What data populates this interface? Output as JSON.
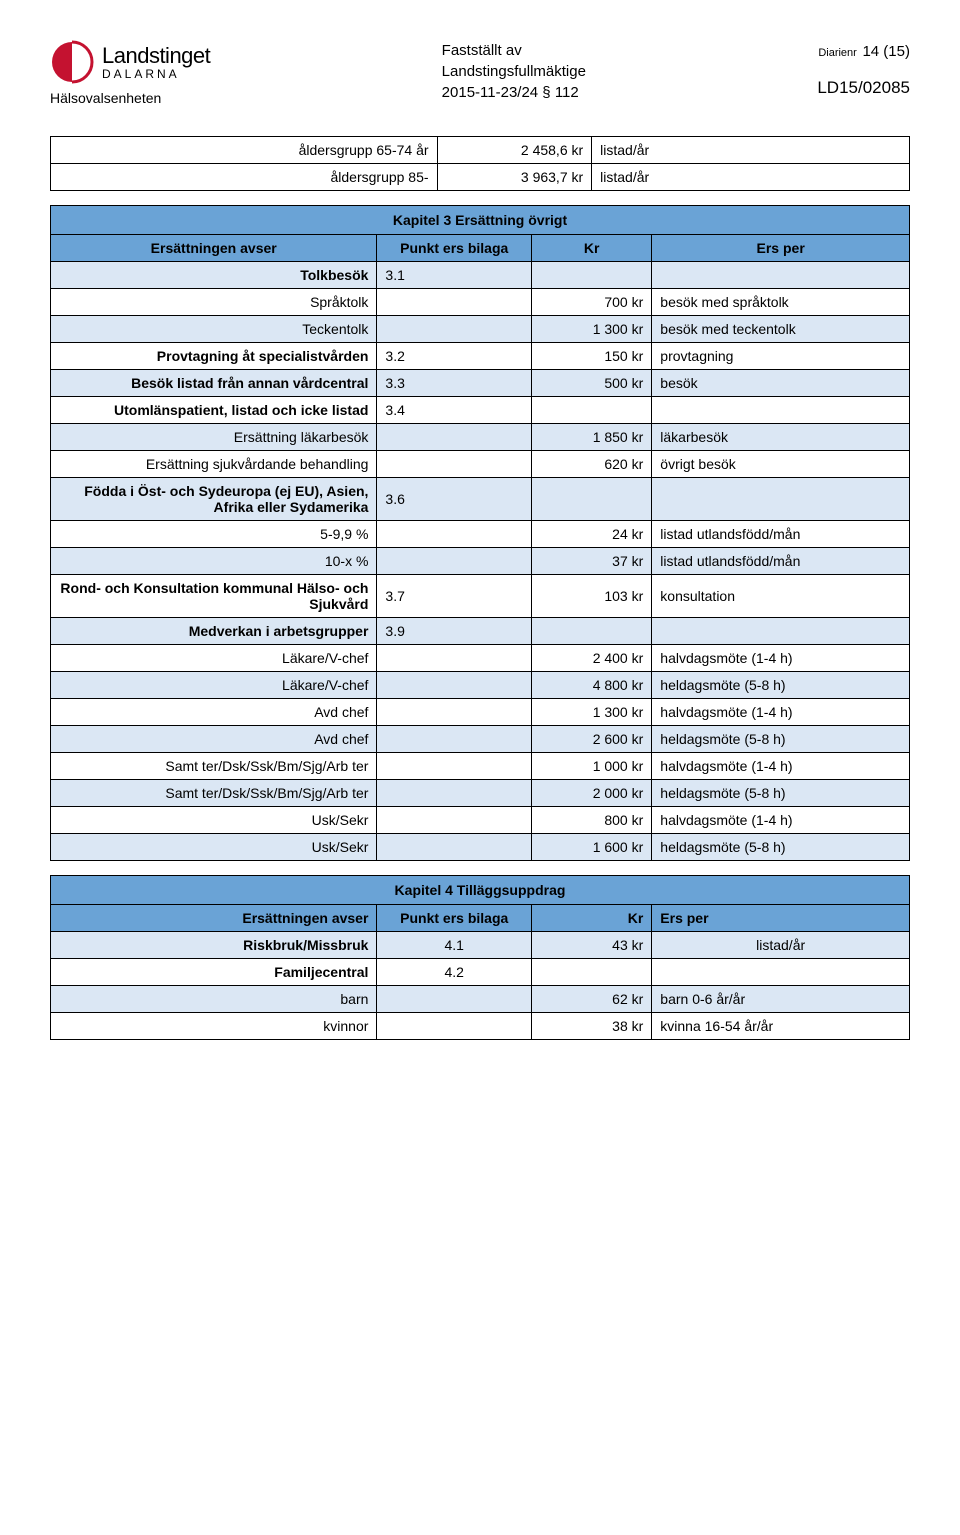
{
  "header": {
    "logo_main": "Landstinget",
    "logo_sub": "DALARNA",
    "unit": "Hälsovalsenheten",
    "mid_line1": "Fastställt av",
    "mid_line2": "Landstingsfullmäktige",
    "mid_line3": "2015-11-23/24 § 112",
    "diarienr_label": "Diarienr",
    "page_num": "14 (15)",
    "doc_num": "LD15/02085",
    "logo_color": "#c41230"
  },
  "table_top": {
    "rows": [
      {
        "label": "åldersgrupp 65-74 år",
        "amount": "2 458,6 kr",
        "unit": "listad/år"
      },
      {
        "label": "åldersgrupp 85-",
        "amount": "3 963,7 kr",
        "unit": "listad/år"
      }
    ]
  },
  "table3": {
    "title": "Kapitel 3 Ersättning övrigt",
    "col_headers": [
      "Ersättningen avser",
      "Punkt ers bilaga",
      "Kr",
      "Ers per"
    ],
    "rows": [
      {
        "bg": "light",
        "c1": "Tolkbesök",
        "c1bold": true,
        "c2": "3.1",
        "c3": "",
        "c4": ""
      },
      {
        "bg": "white",
        "c1": "Språktolk",
        "c2": "",
        "c3": "700 kr",
        "c4": "besök med språktolk"
      },
      {
        "bg": "light",
        "c1": "Teckentolk",
        "c2": "",
        "c3": "1 300 kr",
        "c4": "besök med teckentolk"
      },
      {
        "bg": "white",
        "c1": "Provtagning åt specialistvården",
        "c1bold": true,
        "c2": "3.2",
        "c3": "150 kr",
        "c4": "provtagning"
      },
      {
        "bg": "light",
        "c1": "Besök listad från annan vårdcentral",
        "c1bold": true,
        "c2": "3.3",
        "c3": "500 kr",
        "c4": "besök"
      },
      {
        "bg": "white",
        "c1": "Utomlänspatient, listad och icke listad",
        "c1bold": true,
        "c2": "3.4",
        "c3": "",
        "c4": ""
      },
      {
        "bg": "light",
        "c1": "Ersättning läkarbesök",
        "c2": "",
        "c3": "1 850 kr",
        "c4": "läkarbesök"
      },
      {
        "bg": "white",
        "c1": "Ersättning sjukvårdande behandling",
        "c2": "",
        "c3": "620 kr",
        "c4": "övrigt besök"
      },
      {
        "bg": "light",
        "c1": "Födda i Öst- och Sydeuropa (ej EU), Asien, Afrika eller Sydamerika",
        "c1bold": true,
        "c2": "3.6",
        "c3": "",
        "c4": ""
      },
      {
        "bg": "white",
        "c1": "5-9,9 %",
        "c2": "",
        "c3": "24 kr",
        "c4": "listad utlandsfödd/mån"
      },
      {
        "bg": "light",
        "c1": "10-x %",
        "c2": "",
        "c3": "37 kr",
        "c4": "listad utlandsfödd/mån"
      },
      {
        "bg": "white",
        "c1": "Rond- och Konsultation kommunal Hälso- och Sjukvård",
        "c1bold": true,
        "c2": "3.7",
        "c3": "103 kr",
        "c4": "konsultation"
      },
      {
        "bg": "light",
        "c1": "Medverkan i arbetsgrupper",
        "c1bold": true,
        "c2": "3.9",
        "c3": "",
        "c4": ""
      },
      {
        "bg": "white",
        "c1": "Läkare/V-chef",
        "c2": "",
        "c3": "2 400 kr",
        "c4": "halvdagsmöte (1-4 h)"
      },
      {
        "bg": "light",
        "c1": "Läkare/V-chef",
        "c2": "",
        "c3": "4 800 kr",
        "c4": "heldagsmöte (5-8 h)"
      },
      {
        "bg": "white",
        "c1": "Avd chef",
        "c2": "",
        "c3": "1 300 kr",
        "c4": "halvdagsmöte (1-4 h)"
      },
      {
        "bg": "light",
        "c1": "Avd chef",
        "c2": "",
        "c3": "2 600 kr",
        "c4": "heldagsmöte (5-8 h)"
      },
      {
        "bg": "white",
        "c1": "Samt ter/Dsk/Ssk/Bm/Sjg/Arb ter",
        "c2": "",
        "c3": "1 000 kr",
        "c4": "halvdagsmöte (1-4 h)"
      },
      {
        "bg": "light",
        "c1": "Samt ter/Dsk/Ssk/Bm/Sjg/Arb ter",
        "c2": "",
        "c3": "2 000 kr",
        "c4": "heldagsmöte (5-8 h)"
      },
      {
        "bg": "white",
        "c1": "Usk/Sekr",
        "c2": "",
        "c3": "800 kr",
        "c4": "halvdagsmöte (1-4 h)"
      },
      {
        "bg": "light",
        "c1": "Usk/Sekr",
        "c2": "",
        "c3": "1 600 kr",
        "c4": "heldagsmöte (5-8 h)"
      }
    ]
  },
  "table4": {
    "title": "Kapitel 4 Tilläggsuppdrag",
    "col_headers": [
      "Ersättningen avser",
      "Punkt ers bilaga",
      "Kr",
      "Ers per"
    ],
    "rows": [
      {
        "bg": "light",
        "c1": "Riskbruk/Missbruk",
        "c1bold": true,
        "c2": "4.1",
        "c3": "43 kr",
        "c4": "listad/år",
        "c4center": true
      },
      {
        "bg": "white",
        "c1": "Familjecentral",
        "c1bold": true,
        "c2": "4.2",
        "c3": "",
        "c4": ""
      },
      {
        "bg": "light",
        "c1": "barn",
        "c2": "",
        "c3": "62 kr",
        "c4": "barn 0-6 år/år"
      },
      {
        "bg": "white",
        "c1": "kvinnor",
        "c2": "",
        "c3": "38 kr",
        "c4": "kvinna 16-54 år/år"
      }
    ]
  },
  "colors": {
    "header_bg": "#6aa3d6",
    "row_light": "#dbe7f4",
    "row_white": "#ffffff",
    "border": "#000000"
  }
}
